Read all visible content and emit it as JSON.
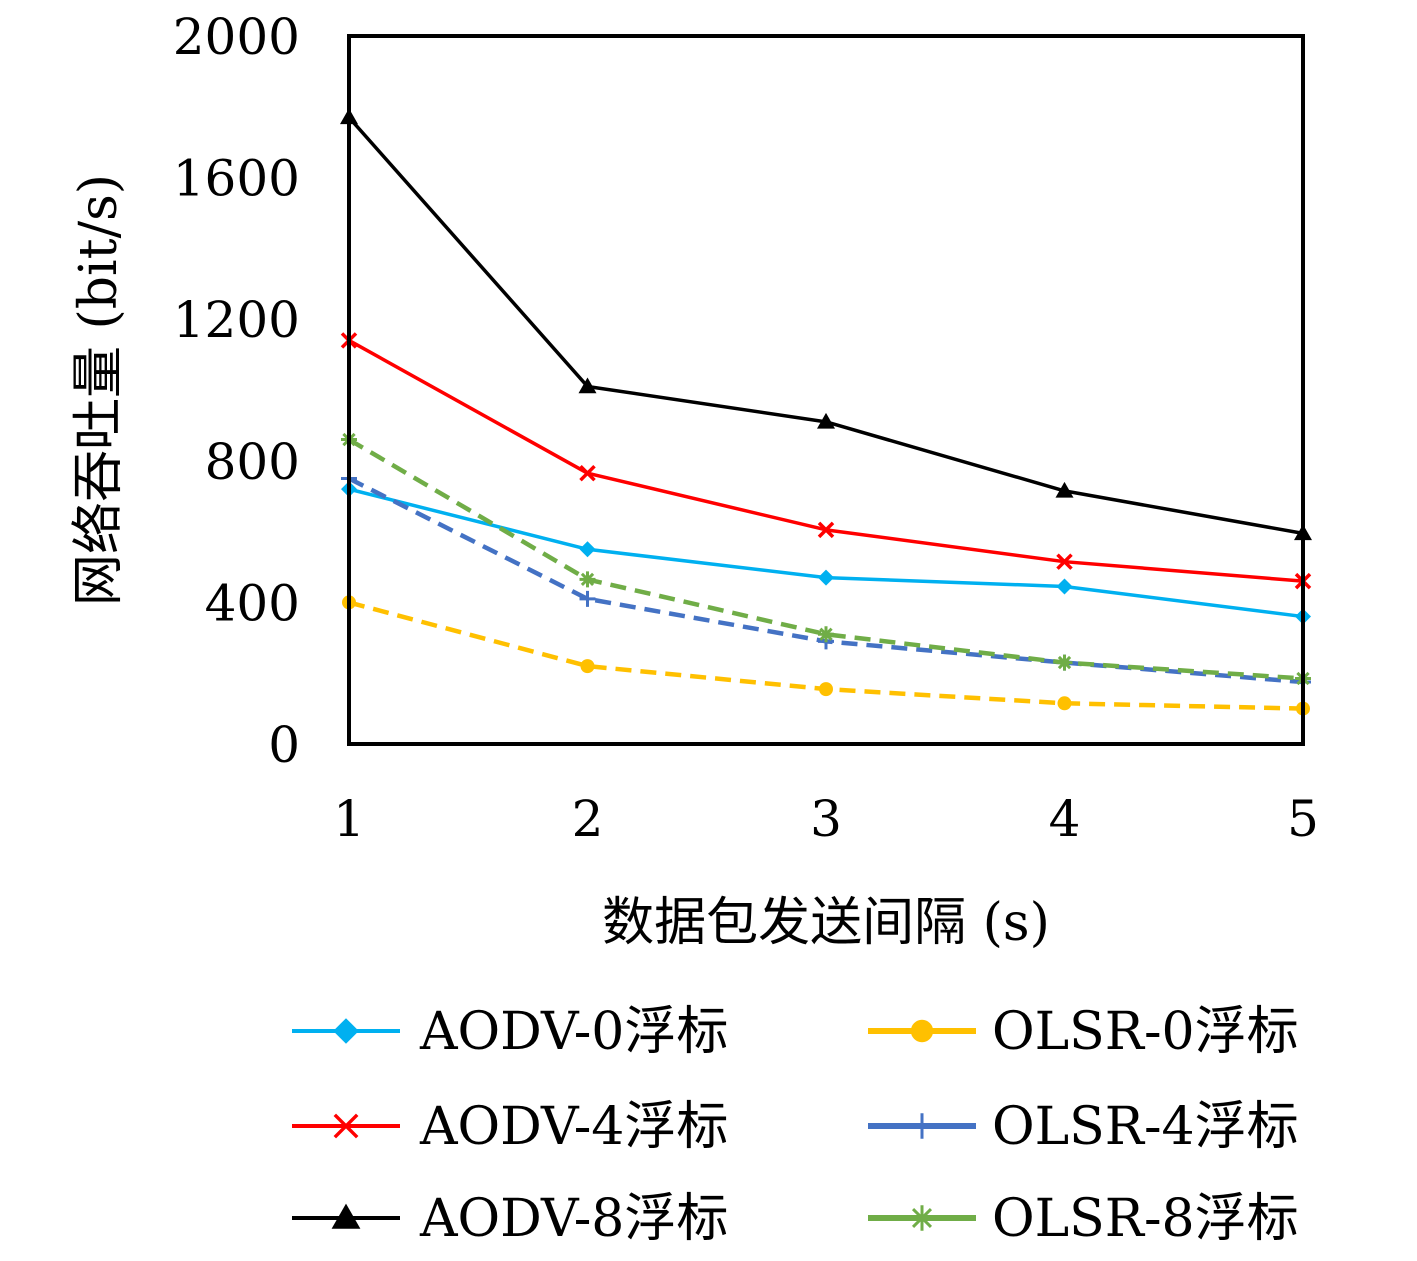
{
  "chart_data": {
    "type": "line",
    "title": "",
    "xlabel": "数据包发送间隔 (s)",
    "ylabel": "网络吞吐量 (bit/s)",
    "x": [
      1,
      2,
      3,
      4,
      5
    ],
    "x_tick_labels": [
      "1",
      "2",
      "3",
      "4",
      "5"
    ],
    "y_tick_labels": [
      "0",
      "400",
      "800",
      "1200",
      "1600",
      "2000"
    ],
    "ylim": [
      0,
      2000
    ],
    "grid": false,
    "legend_position": "bottom",
    "series": [
      {
        "name": "AODV-0浮标",
        "values": [
          720,
          550,
          470,
          445,
          360
        ],
        "color": "#00B0F0",
        "marker": "diamond",
        "dash": "solid"
      },
      {
        "name": "OLSR-0浮标",
        "values": [
          400,
          220,
          155,
          115,
          100
        ],
        "color": "#FFC000",
        "marker": "circle",
        "dash": "dashed"
      },
      {
        "name": "AODV-4浮标",
        "values": [
          1140,
          765,
          605,
          515,
          460
        ],
        "color": "#FF0000",
        "marker": "x",
        "dash": "solid"
      },
      {
        "name": "OLSR-4浮标",
        "values": [
          750,
          410,
          290,
          230,
          175
        ],
        "color": "#4472C4",
        "marker": "plus",
        "dash": "dashed"
      },
      {
        "name": "AODV-8浮标",
        "values": [
          1770,
          1010,
          910,
          715,
          595
        ],
        "color": "#000000",
        "marker": "triangle",
        "dash": "solid"
      },
      {
        "name": "OLSR-8浮标",
        "values": [
          860,
          465,
          310,
          230,
          185
        ],
        "color": "#70AD47",
        "marker": "asterisk",
        "dash": "dashed"
      }
    ]
  }
}
